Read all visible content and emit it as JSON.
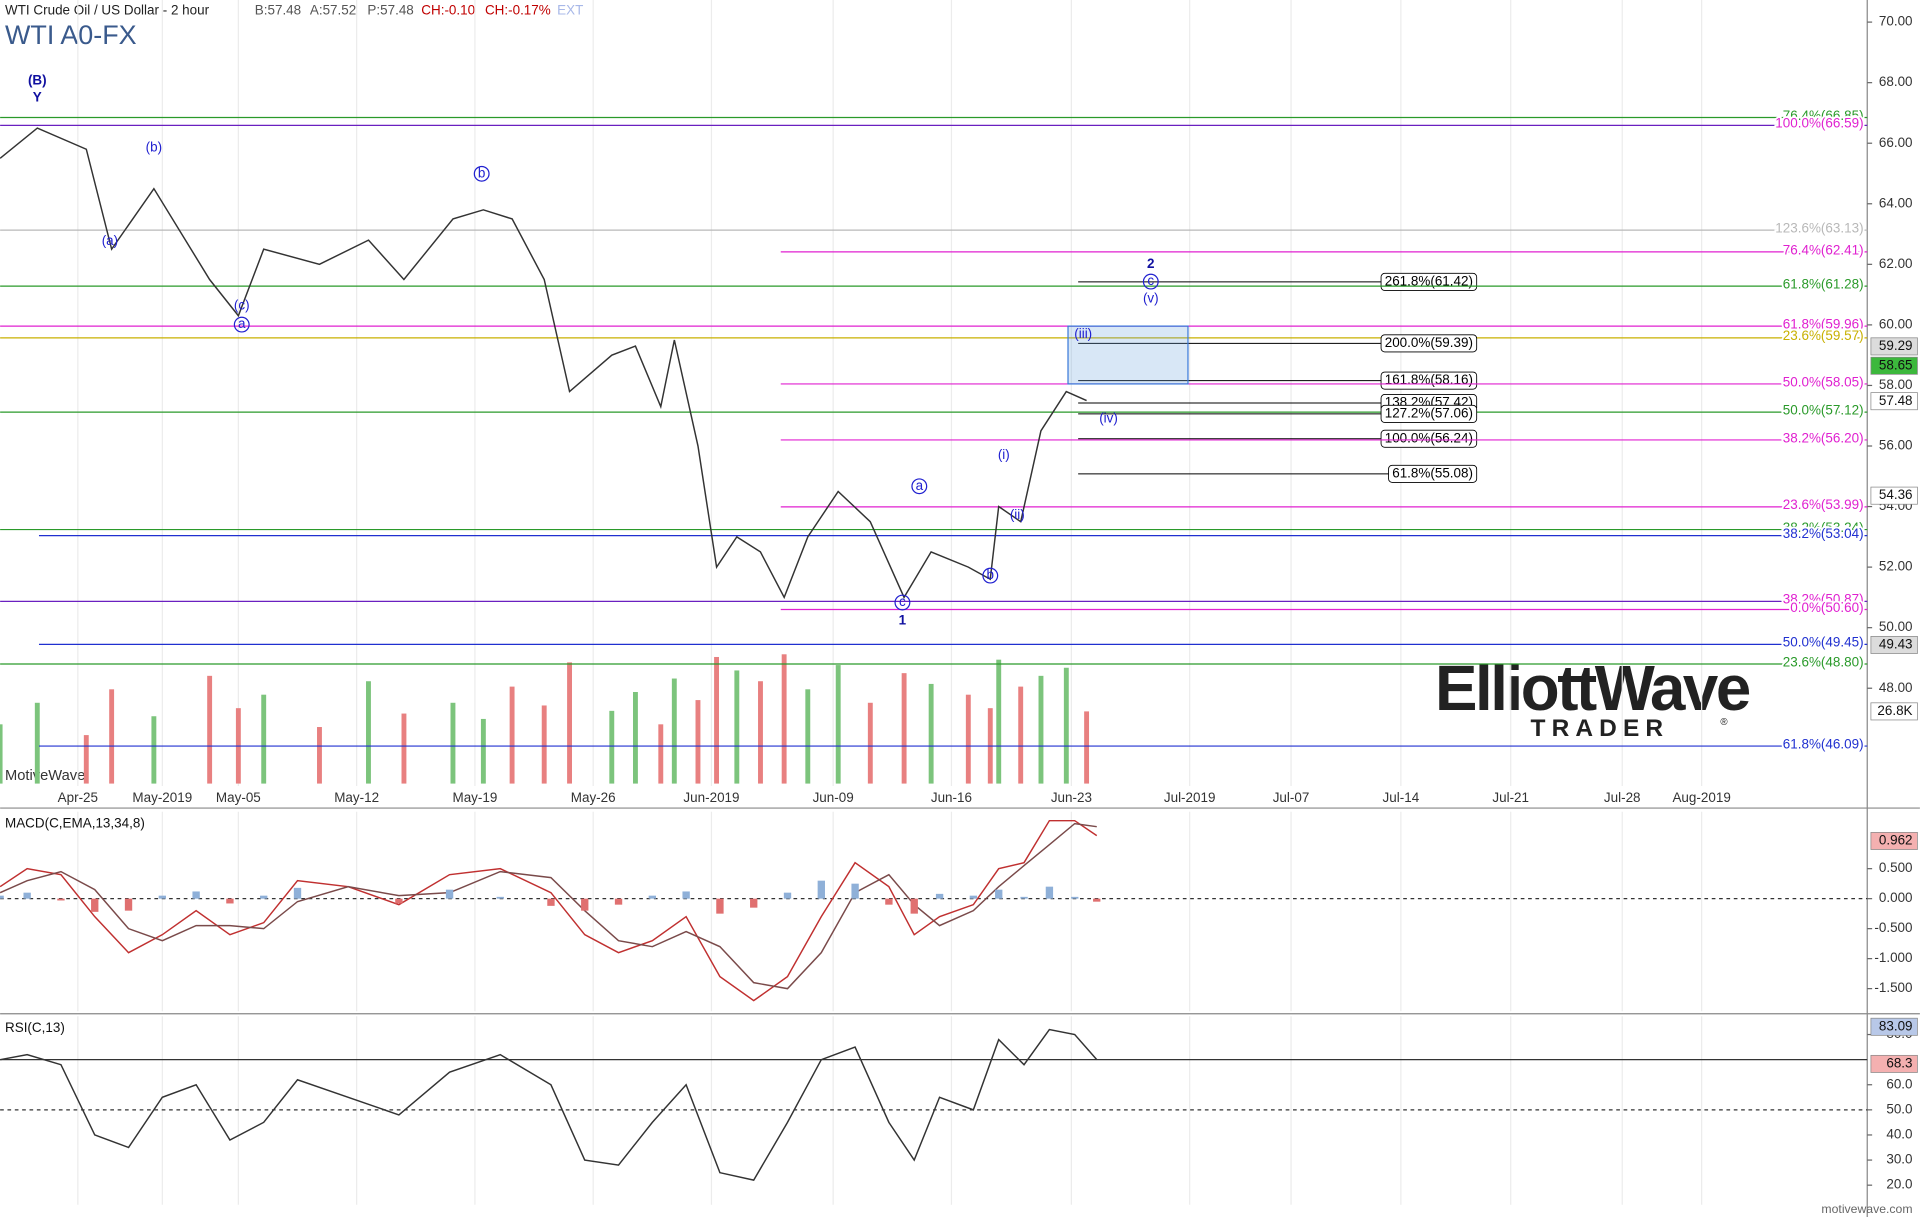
{
  "header": {
    "instrument": "WTI Crude Oil / US Dollar - 2 hour",
    "bid": "B:57.48",
    "ask": "A:57.52",
    "price": "P:57.48",
    "change": "CH:-0.10",
    "change_pct": "CH:-0.17%",
    "ext": "EXT",
    "symbol": "WTI A0-FX"
  },
  "watermark": "MotiveWave",
  "footer": "motivewave.com",
  "logo": {
    "line1": "ElliottWave",
    "line2": "TRADER",
    "mark": "®"
  },
  "chart_data": [
    {
      "type": "line",
      "name": "price",
      "xlim": [
        110.4,
        220.9
      ],
      "ylim": [
        44.77,
        70.73
      ],
      "xticks": [
        {
          "value": 115,
          "label": "Apr-25"
        },
        {
          "value": 120,
          "label": "May-2019"
        },
        {
          "value": 124.5,
          "label": "May-05"
        },
        {
          "value": 131.5,
          "label": "May-12"
        },
        {
          "value": 138.5,
          "label": "May-19"
        },
        {
          "value": 145.5,
          "label": "May-26"
        },
        {
          "value": 152.5,
          "label": "Jun-2019"
        },
        {
          "value": 159.7,
          "label": "Jun-09"
        },
        {
          "value": 166.7,
          "label": "Jun-16"
        },
        {
          "value": 173.8,
          "label": "Jun-23"
        },
        {
          "value": 180.8,
          "label": "Jul-2019"
        },
        {
          "value": 186.8,
          "label": "Jul-07"
        },
        {
          "value": 193.3,
          "label": "Jul-14"
        },
        {
          "value": 199.8,
          "label": "Jul-21"
        },
        {
          "value": 206.4,
          "label": "Jul-28"
        },
        {
          "value": 211.1,
          "label": "Aug-2019"
        }
      ],
      "yticks": [
        {
          "value": 48,
          "label": "48.00"
        },
        {
          "value": 50,
          "label": "50.00"
        },
        {
          "value": 52,
          "label": "52.00"
        },
        {
          "value": 54,
          "label": "54.00"
        },
        {
          "value": 56,
          "label": "56.00"
        },
        {
          "value": 58,
          "label": "58.00"
        },
        {
          "value": 60,
          "label": "60.00"
        },
        {
          "value": 62,
          "label": "62.00"
        },
        {
          "value": 64,
          "label": "64.00"
        },
        {
          "value": 66,
          "label": "66.00"
        },
        {
          "value": 68,
          "label": "68.00"
        },
        {
          "value": 70,
          "label": "70.00"
        }
      ],
      "grid": "x",
      "series": [
        {
          "name": "WTI A0-FX",
          "color": "#333333",
          "x": [
            110.4,
            112.6,
            115.5,
            117,
            119.5,
            122.8,
            124.5,
            126,
            129.3,
            132.2,
            134.3,
            137.2,
            139,
            140.7,
            142.6,
            144.1,
            146.6,
            148,
            149.5,
            150.3,
            151.7,
            152.8,
            154,
            155.4,
            156.8,
            158.2,
            160,
            161.9,
            163.9,
            165.5,
            167.7,
            169,
            169.5,
            170.8,
            172,
            173.5,
            174.7
          ],
          "values": [
            65.5,
            66.5,
            65.8,
            62.5,
            64.5,
            61.5,
            60.3,
            62.5,
            62,
            62.8,
            61.5,
            63.5,
            63.8,
            63.5,
            61.5,
            57.8,
            59,
            59.3,
            57.3,
            59.5,
            56,
            52,
            53,
            52.5,
            51,
            53,
            54.5,
            53.5,
            51,
            52.5,
            52,
            51.6,
            54,
            53.5,
            56.5,
            57.8,
            57.5
          ],
          "volume": [
            22000,
            30000,
            18000,
            35000,
            25000,
            40000,
            28000,
            33000,
            21000,
            38000,
            26000,
            30000,
            24000,
            36000,
            29000,
            45000,
            27000,
            34000,
            22000,
            39000,
            31000,
            47000,
            42000,
            38000,
            48000,
            35000,
            44000,
            30000,
            41000,
            37000,
            33000,
            28000,
            46000,
            36000,
            40000,
            43000,
            26800
          ]
        }
      ],
      "volume_lim": [
        0,
        50000
      ],
      "volume_up_color": "#7cc47c",
      "volume_down_color": "#e88080",
      "volume_tag": {
        "value": 26800,
        "label": "26.8K"
      },
      "levels": [
        {
          "label": "76.4%(66.85)",
          "value": 66.85,
          "color": "#2a9a2a",
          "from": 110.4,
          "boxed": false
        },
        {
          "label": "100.0%(66.59)",
          "value": 66.59,
          "color": "#e020d0",
          "from": 110.4,
          "boxed": false,
          "line_color": "#6a20c0"
        },
        {
          "label": "123.6%(63.13)",
          "value": 63.13,
          "color": "#b8b8b8",
          "from": 110.4,
          "boxed": false
        },
        {
          "label": "76.4%(62.41)",
          "value": 62.41,
          "color": "#e020d0",
          "from": 156.6,
          "boxed": false
        },
        {
          "label": "261.8%(61.42)",
          "value": 61.42,
          "color": "#000000",
          "from": 174.2,
          "boxed": true
        },
        {
          "label": "61.8%(61.28)",
          "value": 61.28,
          "color": "#2a9a2a",
          "from": 110.4,
          "boxed": false
        },
        {
          "label": "61.8%(59.96)",
          "value": 59.96,
          "color": "#e020d0",
          "from": 110.4,
          "boxed": false
        },
        {
          "label": "23.6%(59.57)",
          "value": 59.57,
          "color": "#c8b000",
          "from": 110.4,
          "boxed": false
        },
        {
          "label": "200.0%(59.39)",
          "value": 59.39,
          "color": "#000000",
          "from": 174.2,
          "boxed": true
        },
        {
          "label": "161.8%(58.16)",
          "value": 58.16,
          "color": "#000000",
          "from": 174.2,
          "boxed": true
        },
        {
          "label": "50.0%(58.05)",
          "value": 58.05,
          "color": "#e020d0",
          "from": 156.6,
          "boxed": false
        },
        {
          "label": "138.2%(57.42)",
          "value": 57.42,
          "color": "#000000",
          "from": 174.2,
          "boxed": true
        },
        {
          "label": "50.0%(57.12)",
          "value": 57.12,
          "color": "#2a9a2a",
          "from": 110.4,
          "boxed": false
        },
        {
          "label": "127.2%(57.06)",
          "value": 57.06,
          "color": "#000000",
          "from": 174.2,
          "boxed": true
        },
        {
          "label": "100.0%(56.24)",
          "value": 56.24,
          "color": "#000000",
          "from": 174.2,
          "boxed": true
        },
        {
          "label": "38.2%(56.20)",
          "value": 56.2,
          "color": "#e020d0",
          "from": 156.6,
          "boxed": false
        },
        {
          "label": "61.8%(55.08)",
          "value": 55.08,
          "color": "#000000",
          "from": 174.2,
          "boxed": true
        },
        {
          "label": "23.6%(53.99)",
          "value": 53.99,
          "color": "#e020d0",
          "from": 156.6,
          "boxed": false
        },
        {
          "label": "38.2%(53.24)",
          "value": 53.24,
          "color": "#2a9a2a",
          "from": 110.4,
          "boxed": false
        },
        {
          "label": "38.2%(53.04)",
          "value": 53.04,
          "color": "#2030d0",
          "from": 112.7,
          "boxed": false
        },
        {
          "label": "38.2%(50.87)",
          "value": 50.87,
          "color": "#e020d0",
          "from": 110.4,
          "boxed": false,
          "line_color": "#6a20c0"
        },
        {
          "label": "0.0%(50.60)",
          "value": 50.6,
          "color": "#e020d0",
          "from": 156.6,
          "boxed": false
        },
        {
          "label": "50.0%(49.45)",
          "value": 49.45,
          "color": "#2030d0",
          "from": 112.7,
          "boxed": false
        },
        {
          "label": "23.6%(48.80)",
          "value": 48.8,
          "color": "#2a9a2a",
          "from": 110.4,
          "boxed": false
        },
        {
          "label": "61.8%(46.09)",
          "value": 46.09,
          "color": "#2030d0",
          "from": 112.7,
          "boxed": false
        }
      ],
      "target_box": {
        "x": [
          173.6,
          180.7
        ],
        "y": [
          58.05,
          59.96
        ],
        "color": "#3a7ad9"
      },
      "annotations": [
        {
          "text": "(B)",
          "x": 112.6,
          "y": 68.06,
          "circled": false,
          "bold": true
        },
        {
          "text": "Y",
          "x": 112.6,
          "y": 67.49,
          "circled": false,
          "bold": true
        },
        {
          "text": "(b)",
          "x": 119.5,
          "y": 65.84,
          "circled": false,
          "bold": false
        },
        {
          "text": "(a)",
          "x": 116.9,
          "y": 62.76,
          "circled": false,
          "bold": false
        },
        {
          "text": "(c)",
          "x": 124.7,
          "y": 60.62,
          "circled": false,
          "bold": false
        },
        {
          "text": "a",
          "x": 124.7,
          "y": 60.01,
          "circled": true,
          "bold": false
        },
        {
          "text": "b",
          "x": 138.9,
          "y": 64.99,
          "circled": true,
          "bold": false
        },
        {
          "text": "a",
          "x": 164.8,
          "y": 54.67,
          "circled": true,
          "bold": false
        },
        {
          "text": "b",
          "x": 169,
          "y": 51.72,
          "circled": true,
          "bold": false
        },
        {
          "text": "c",
          "x": 163.8,
          "y": 50.83,
          "circled": true,
          "bold": false
        },
        {
          "text": "1",
          "x": 163.8,
          "y": 50.23,
          "circled": false,
          "bold": true
        },
        {
          "text": "(i)",
          "x": 169.8,
          "y": 55.69,
          "circled": false,
          "bold": false
        },
        {
          "text": "(ii)",
          "x": 170.6,
          "y": 53.7,
          "circled": false,
          "bold": false
        },
        {
          "text": "(iii)",
          "x": 174.5,
          "y": 59.69,
          "circled": false,
          "bold": false
        },
        {
          "text": "(iv)",
          "x": 176,
          "y": 56.9,
          "circled": false,
          "bold": false
        },
        {
          "text": "2",
          "x": 178.5,
          "y": 61.99,
          "circled": false,
          "bold": true
        },
        {
          "text": "c",
          "x": 178.5,
          "y": 61.43,
          "circled": true,
          "bold": false
        },
        {
          "text": "(v)",
          "x": 178.5,
          "y": 60.86,
          "circled": false,
          "bold": false
        }
      ],
      "price_tags": [
        {
          "value": 59.29,
          "color": "#dcdcdc"
        },
        {
          "value": 58.65,
          "color": "#3cb83c"
        },
        {
          "value": 57.48,
          "color": "#ffffff"
        },
        {
          "value": 54.36,
          "color": "#ffffff"
        },
        {
          "value": 49.43,
          "color": "#dcdcdc"
        }
      ]
    },
    {
      "type": "line",
      "name": "macd",
      "title": "MACD(C,EMA,13,34,8)",
      "ylim": [
        -1.878,
        1.449
      ],
      "yticks": [
        {
          "value": 0.5,
          "label": "0.500"
        },
        {
          "value": 0,
          "label": "0.000"
        },
        {
          "value": -0.5,
          "label": "-0.500"
        },
        {
          "value": -1,
          "label": "-1.000"
        },
        {
          "value": -1.5,
          "label": "-1.500"
        }
      ],
      "ref_lines": [
        {
          "value": 0,
          "dash": true
        }
      ],
      "tags": [
        {
          "value": 0.962,
          "color": "#f4b0b0"
        }
      ],
      "series": [
        {
          "name": "MACD",
          "type": "line",
          "color": "#c03030",
          "x": [
            110.4,
            112,
            114,
            116,
            118,
            120,
            122,
            124,
            126,
            128,
            131,
            134,
            137,
            140,
            143,
            145,
            147,
            149,
            151,
            153,
            155,
            157,
            159,
            161,
            163,
            164.5,
            166,
            168,
            169.5,
            171,
            172.5,
            174,
            175.3
          ],
          "values": [
            0.2,
            0.5,
            0.4,
            -0.3,
            -0.9,
            -0.6,
            -0.2,
            -0.6,
            -0.4,
            0.3,
            0.2,
            -0.1,
            0.4,
            0.5,
            0.1,
            -0.6,
            -0.9,
            -0.7,
            -0.3,
            -1.3,
            -1.7,
            -1.3,
            -0.3,
            0.6,
            0.2,
            -0.6,
            -0.3,
            -0.1,
            0.5,
            0.6,
            1.3,
            1.3,
            1.05
          ]
        },
        {
          "name": "Signal",
          "type": "line",
          "color": "#7a4a4a",
          "x": [
            110.4,
            112,
            114,
            116,
            118,
            120,
            122,
            124,
            126,
            128,
            131,
            134,
            137,
            140,
            143,
            145,
            147,
            149,
            151,
            153,
            155,
            157,
            159,
            161,
            163,
            164.5,
            166,
            168,
            169.5,
            171,
            172.5,
            174,
            175.3
          ],
          "values": [
            0.1,
            0.3,
            0.45,
            0.15,
            -0.5,
            -0.7,
            -0.45,
            -0.45,
            -0.5,
            -0.05,
            0.2,
            0.05,
            0.1,
            0.45,
            0.35,
            -0.2,
            -0.7,
            -0.8,
            -0.55,
            -0.8,
            -1.4,
            -1.5,
            -0.9,
            0.1,
            0.4,
            -0.1,
            -0.45,
            -0.2,
            0.2,
            0.55,
            0.9,
            1.25,
            1.2
          ]
        },
        {
          "name": "Histogram",
          "type": "bar",
          "color": "#8fb0d8",
          "neg_color": "#e07070",
          "x": [
            110.4,
            112,
            114,
            116,
            118,
            120,
            122,
            124,
            126,
            128,
            131,
            134,
            137,
            140,
            143,
            145,
            147,
            149,
            151,
            153,
            155,
            157,
            159,
            161,
            163,
            164.5,
            166,
            168,
            169.5,
            171,
            172.5,
            174,
            175.3
          ],
          "values": [
            0.05,
            0.1,
            -0.03,
            -0.22,
            -0.2,
            0.05,
            0.12,
            -0.08,
            0.05,
            0.18,
            0,
            -0.08,
            0.15,
            0.03,
            -0.12,
            -0.2,
            -0.1,
            0.05,
            0.12,
            -0.25,
            -0.15,
            0.1,
            0.3,
            0.25,
            -0.1,
            -0.25,
            0.08,
            0.05,
            0.15,
            0.03,
            0.2,
            0.03,
            -0.05
          ]
        }
      ]
    },
    {
      "type": "line",
      "name": "rsi",
      "title": "RSI(C,13)",
      "ylim": [
        12.2,
        87.3
      ],
      "yticks": [
        {
          "value": 20,
          "label": "20.0"
        },
        {
          "value": 30,
          "label": "30.0"
        },
        {
          "value": 40,
          "label": "40.0"
        },
        {
          "value": 50,
          "label": "50.0"
        },
        {
          "value": 60,
          "label": "60.0"
        },
        {
          "value": 80,
          "label": "80.0"
        }
      ],
      "ref_lines": [
        {
          "value": 70,
          "dash": false
        },
        {
          "value": 50,
          "dash": true
        }
      ],
      "tags": [
        {
          "value": 83.09,
          "color": "#b8c8e8"
        },
        {
          "value": 68.3,
          "color": "#f4b0b0"
        }
      ],
      "series": [
        {
          "name": "RSI",
          "type": "line",
          "color": "#333333",
          "x": [
            110.4,
            112,
            114,
            116,
            118,
            120,
            122,
            124,
            126,
            128,
            131,
            134,
            137,
            140,
            143,
            145,
            147,
            149,
            151,
            153,
            155,
            157,
            159,
            161,
            163,
            164.5,
            166,
            168,
            169.5,
            171,
            172.5,
            174,
            175.3
          ],
          "values": [
            70,
            72,
            68,
            40,
            35,
            55,
            60,
            38,
            45,
            62,
            55,
            48,
            65,
            72,
            60,
            30,
            28,
            45,
            60,
            25,
            22,
            45,
            70,
            75,
            45,
            30,
            55,
            50,
            78,
            68,
            82,
            80,
            70
          ]
        }
      ]
    }
  ]
}
